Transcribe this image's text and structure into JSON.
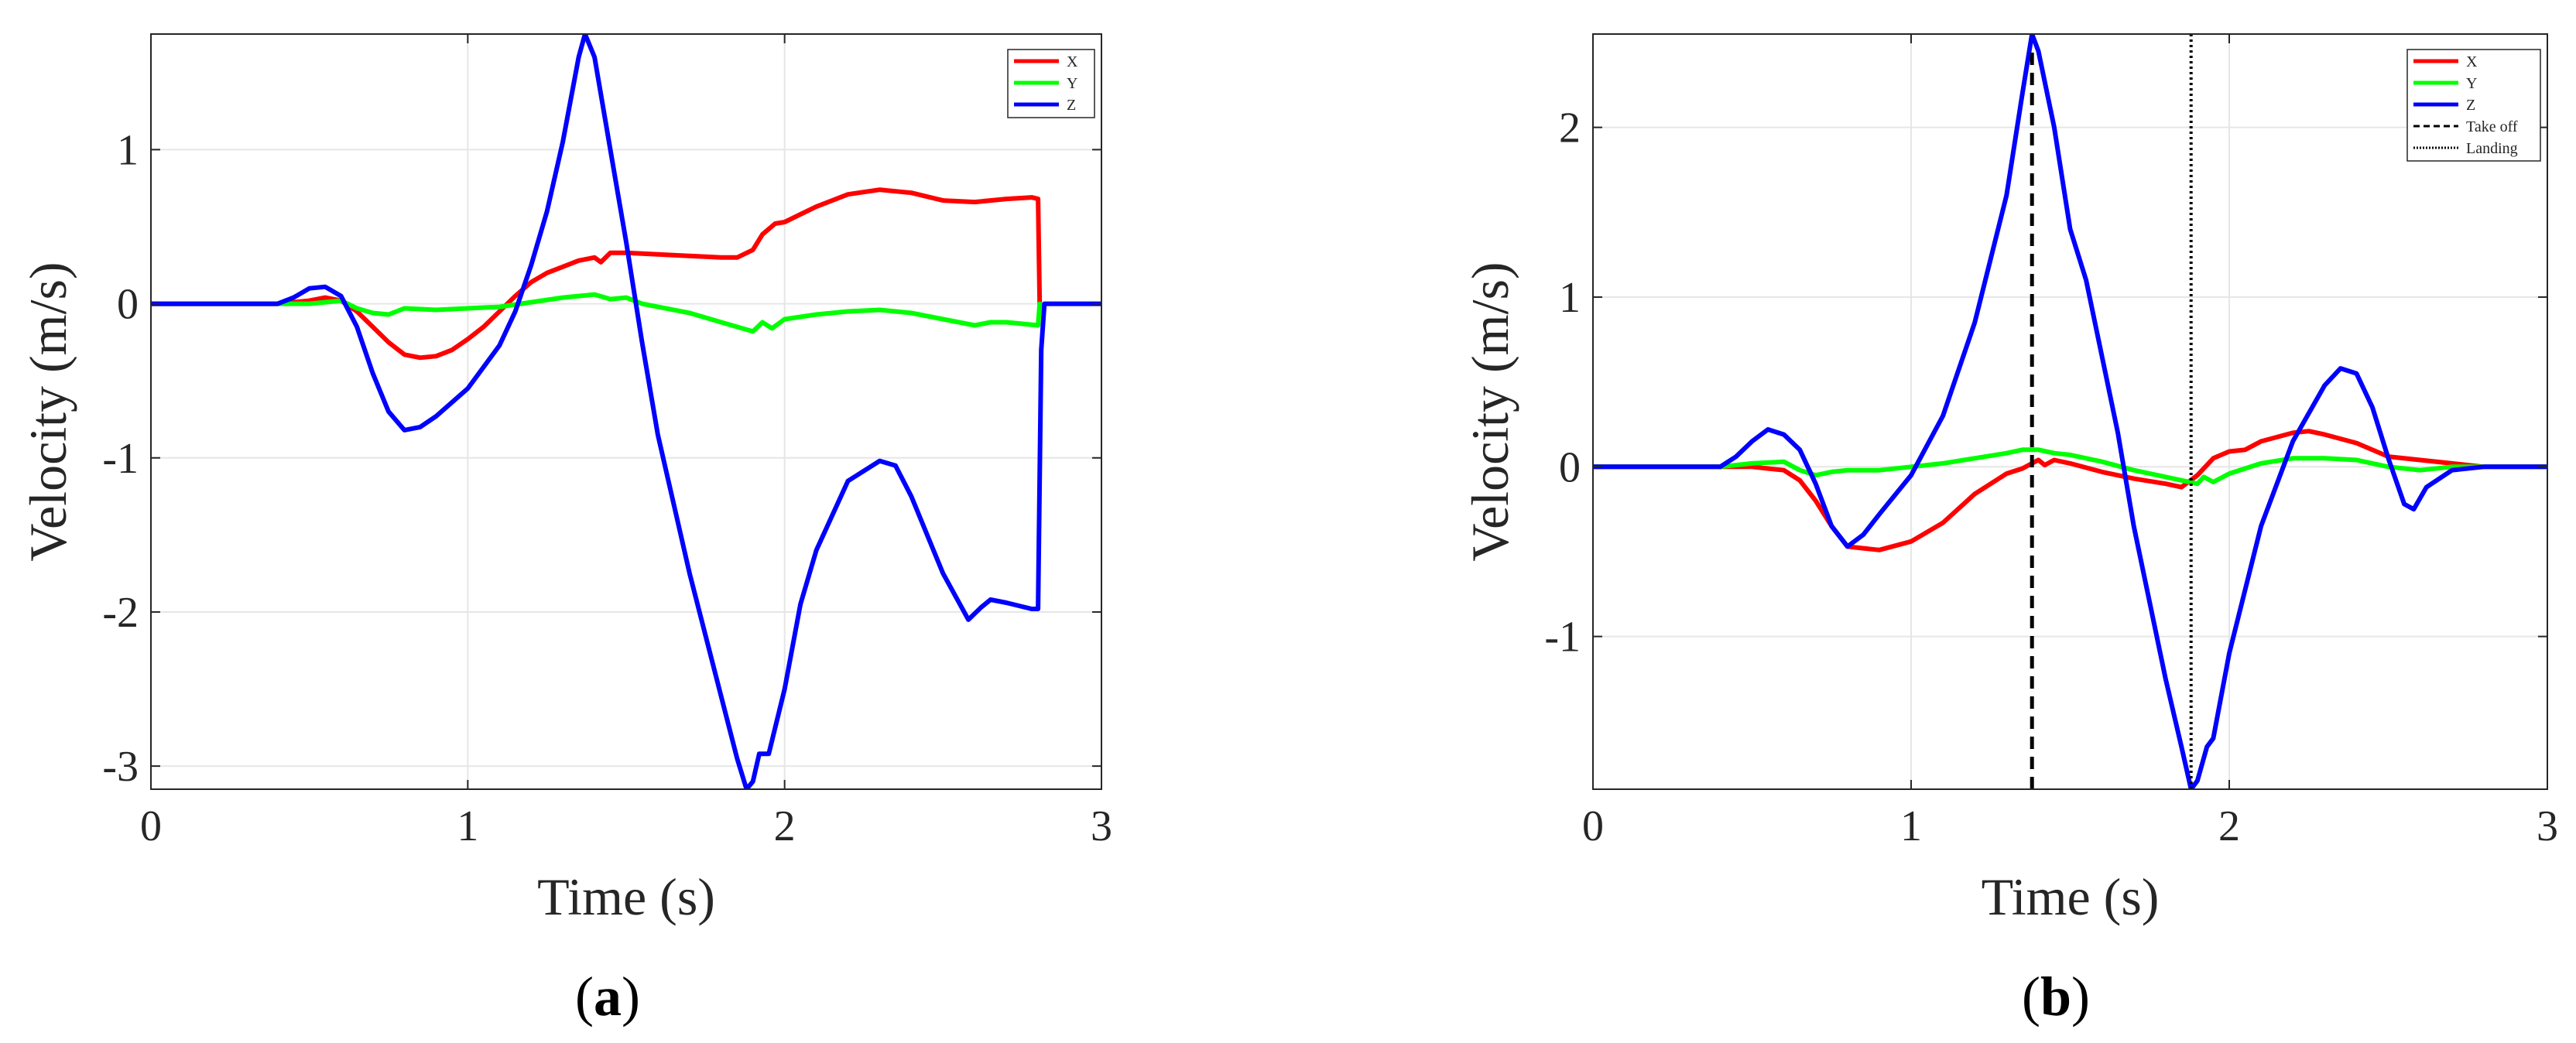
{
  "figure_labels": {
    "a": "a",
    "b": "b"
  },
  "chart_data": [
    {
      "type": "line",
      "panel": "a",
      "xlabel": "Time (s)",
      "ylabel": "Velocity (m/s)",
      "xlim": [
        0,
        3
      ],
      "ylim": [
        -3.15,
        1.75
      ],
      "xticks": [
        0,
        1,
        2,
        3
      ],
      "yticks": [
        -3,
        -2,
        -1,
        0,
        1
      ],
      "grid": true,
      "legend_position": "top-right",
      "series": [
        {
          "name": "X",
          "color": "#ff0000",
          "points": [
            [
              0,
              0
            ],
            [
              0.4,
              0
            ],
            [
              0.5,
              0.02
            ],
            [
              0.55,
              0.04
            ],
            [
              0.6,
              0.02
            ],
            [
              0.65,
              -0.05
            ],
            [
              0.7,
              -0.15
            ],
            [
              0.75,
              -0.25
            ],
            [
              0.8,
              -0.33
            ],
            [
              0.85,
              -0.35
            ],
            [
              0.9,
              -0.34
            ],
            [
              0.95,
              -0.3
            ],
            [
              1.0,
              -0.23
            ],
            [
              1.05,
              -0.15
            ],
            [
              1.1,
              -0.05
            ],
            [
              1.15,
              0.05
            ],
            [
              1.2,
              0.14
            ],
            [
              1.25,
              0.2
            ],
            [
              1.3,
              0.24
            ],
            [
              1.35,
              0.28
            ],
            [
              1.4,
              0.3
            ],
            [
              1.42,
              0.27
            ],
            [
              1.45,
              0.33
            ],
            [
              1.5,
              0.33
            ],
            [
              1.6,
              0.32
            ],
            [
              1.7,
              0.31
            ],
            [
              1.8,
              0.3
            ],
            [
              1.85,
              0.3
            ],
            [
              1.9,
              0.35
            ],
            [
              1.93,
              0.45
            ],
            [
              1.97,
              0.52
            ],
            [
              2.0,
              0.53
            ],
            [
              2.05,
              0.58
            ],
            [
              2.1,
              0.63
            ],
            [
              2.2,
              0.71
            ],
            [
              2.3,
              0.74
            ],
            [
              2.4,
              0.72
            ],
            [
              2.5,
              0.67
            ],
            [
              2.6,
              0.66
            ],
            [
              2.7,
              0.68
            ],
            [
              2.78,
              0.69
            ],
            [
              2.8,
              0.68
            ],
            [
              2.805,
              0
            ]
          ]
        },
        {
          "name": "Y",
          "color": "#00ff00",
          "points": [
            [
              0,
              0
            ],
            [
              0.4,
              0
            ],
            [
              0.5,
              0
            ],
            [
              0.6,
              0.02
            ],
            [
              0.65,
              -0.03
            ],
            [
              0.7,
              -0.06
            ],
            [
              0.75,
              -0.07
            ],
            [
              0.8,
              -0.03
            ],
            [
              0.9,
              -0.04
            ],
            [
              1.0,
              -0.03
            ],
            [
              1.1,
              -0.02
            ],
            [
              1.2,
              0.01
            ],
            [
              1.3,
              0.04
            ],
            [
              1.35,
              0.05
            ],
            [
              1.4,
              0.06
            ],
            [
              1.45,
              0.03
            ],
            [
              1.5,
              0.04
            ],
            [
              1.55,
              0
            ],
            [
              1.6,
              -0.02
            ],
            [
              1.7,
              -0.06
            ],
            [
              1.8,
              -0.12
            ],
            [
              1.9,
              -0.18
            ],
            [
              1.93,
              -0.12
            ],
            [
              1.96,
              -0.16
            ],
            [
              2.0,
              -0.1
            ],
            [
              2.1,
              -0.07
            ],
            [
              2.2,
              -0.05
            ],
            [
              2.3,
              -0.04
            ],
            [
              2.4,
              -0.06
            ],
            [
              2.5,
              -0.1
            ],
            [
              2.6,
              -0.14
            ],
            [
              2.65,
              -0.12
            ],
            [
              2.7,
              -0.12
            ],
            [
              2.8,
              -0.14
            ],
            [
              2.805,
              0
            ]
          ]
        },
        {
          "name": "Z",
          "color": "#0000ff",
          "points": [
            [
              0,
              0
            ],
            [
              0.4,
              0
            ],
            [
              0.45,
              0.04
            ],
            [
              0.5,
              0.1
            ],
            [
              0.55,
              0.11
            ],
            [
              0.6,
              0.05
            ],
            [
              0.65,
              -0.15
            ],
            [
              0.7,
              -0.45
            ],
            [
              0.75,
              -0.7
            ],
            [
              0.8,
              -0.82
            ],
            [
              0.85,
              -0.8
            ],
            [
              0.9,
              -0.73
            ],
            [
              1.0,
              -0.55
            ],
            [
              1.1,
              -0.27
            ],
            [
              1.15,
              -0.05
            ],
            [
              1.2,
              0.25
            ],
            [
              1.25,
              0.6
            ],
            [
              1.3,
              1.05
            ],
            [
              1.35,
              1.6
            ],
            [
              1.37,
              1.75
            ],
            [
              1.4,
              1.6
            ],
            [
              1.45,
              1.0
            ],
            [
              1.5,
              0.4
            ],
            [
              1.55,
              -0.25
            ],
            [
              1.6,
              -0.85
            ],
            [
              1.7,
              -1.75
            ],
            [
              1.8,
              -2.55
            ],
            [
              1.85,
              -2.95
            ],
            [
              1.88,
              -3.15
            ],
            [
              1.9,
              -3.1
            ],
            [
              1.92,
              -2.92
            ],
            [
              1.95,
              -2.92
            ],
            [
              2.0,
              -2.5
            ],
            [
              2.05,
              -1.95
            ],
            [
              2.1,
              -1.6
            ],
            [
              2.2,
              -1.15
            ],
            [
              2.3,
              -1.02
            ],
            [
              2.35,
              -1.05
            ],
            [
              2.4,
              -1.25
            ],
            [
              2.5,
              -1.75
            ],
            [
              2.58,
              -2.05
            ],
            [
              2.62,
              -1.97
            ],
            [
              2.65,
              -1.92
            ],
            [
              2.7,
              -1.94
            ],
            [
              2.78,
              -1.98
            ],
            [
              2.8,
              -1.98
            ],
            [
              2.81,
              -0.3
            ],
            [
              2.82,
              0
            ],
            [
              3.0,
              0
            ]
          ]
        }
      ]
    },
    {
      "type": "line",
      "panel": "b",
      "xlabel": "Time (s)",
      "ylabel": "Velocity (m/s)",
      "xlim": [
        0,
        3
      ],
      "ylim": [
        -1.9,
        2.55
      ],
      "xticks": [
        0,
        1,
        2,
        3
      ],
      "yticks": [
        -1,
        0,
        1,
        2
      ],
      "grid": true,
      "legend_position": "top-right",
      "series": [
        {
          "name": "X",
          "color": "#ff0000",
          "points": [
            [
              0,
              0
            ],
            [
              0.4,
              0
            ],
            [
              0.5,
              0
            ],
            [
              0.6,
              -0.02
            ],
            [
              0.65,
              -0.08
            ],
            [
              0.7,
              -0.2
            ],
            [
              0.75,
              -0.35
            ],
            [
              0.8,
              -0.47
            ],
            [
              0.85,
              -0.48
            ],
            [
              0.9,
              -0.49
            ],
            [
              1.0,
              -0.44
            ],
            [
              1.1,
              -0.33
            ],
            [
              1.2,
              -0.16
            ],
            [
              1.3,
              -0.04
            ],
            [
              1.35,
              -0.01
            ],
            [
              1.38,
              0.02
            ],
            [
              1.4,
              0.04
            ],
            [
              1.42,
              0.01
            ],
            [
              1.45,
              0.04
            ],
            [
              1.5,
              0.02
            ],
            [
              1.6,
              -0.03
            ],
            [
              1.7,
              -0.07
            ],
            [
              1.8,
              -0.1
            ],
            [
              1.85,
              -0.12
            ],
            [
              1.9,
              -0.05
            ],
            [
              1.95,
              0.05
            ],
            [
              2.0,
              0.09
            ],
            [
              2.05,
              0.1
            ],
            [
              2.1,
              0.15
            ],
            [
              2.2,
              0.2
            ],
            [
              2.25,
              0.21
            ],
            [
              2.3,
              0.19
            ],
            [
              2.4,
              0.14
            ],
            [
              2.5,
              0.06
            ],
            [
              2.6,
              0.04
            ],
            [
              2.7,
              0.02
            ],
            [
              2.8,
              0
            ],
            [
              3.0,
              0
            ]
          ]
        },
        {
          "name": "Y",
          "color": "#00ff00",
          "points": [
            [
              0,
              0
            ],
            [
              0.4,
              0
            ],
            [
              0.5,
              0.02
            ],
            [
              0.6,
              0.03
            ],
            [
              0.65,
              -0.02
            ],
            [
              0.7,
              -0.05
            ],
            [
              0.75,
              -0.03
            ],
            [
              0.8,
              -0.02
            ],
            [
              0.9,
              -0.02
            ],
            [
              1.0,
              0
            ],
            [
              1.1,
              0.02
            ],
            [
              1.2,
              0.05
            ],
            [
              1.3,
              0.08
            ],
            [
              1.35,
              0.1
            ],
            [
              1.4,
              0.1
            ],
            [
              1.45,
              0.08
            ],
            [
              1.5,
              0.07
            ],
            [
              1.55,
              0.05
            ],
            [
              1.6,
              0.03
            ],
            [
              1.7,
              -0.02
            ],
            [
              1.8,
              -0.06
            ],
            [
              1.9,
              -0.1
            ],
            [
              1.92,
              -0.06
            ],
            [
              1.95,
              -0.09
            ],
            [
              2.0,
              -0.04
            ],
            [
              2.1,
              0.02
            ],
            [
              2.2,
              0.05
            ],
            [
              2.3,
              0.05
            ],
            [
              2.4,
              0.04
            ],
            [
              2.5,
              0
            ],
            [
              2.6,
              -0.02
            ],
            [
              2.7,
              0
            ],
            [
              2.8,
              0
            ],
            [
              3.0,
              0
            ]
          ]
        },
        {
          "name": "Z",
          "color": "#0000ff",
          "points": [
            [
              0,
              0
            ],
            [
              0.4,
              0
            ],
            [
              0.45,
              0.06
            ],
            [
              0.5,
              0.15
            ],
            [
              0.55,
              0.22
            ],
            [
              0.6,
              0.19
            ],
            [
              0.65,
              0.1
            ],
            [
              0.7,
              -0.1
            ],
            [
              0.75,
              -0.35
            ],
            [
              0.8,
              -0.47
            ],
            [
              0.85,
              -0.4
            ],
            [
              0.9,
              -0.28
            ],
            [
              1.0,
              -0.05
            ],
            [
              1.1,
              0.3
            ],
            [
              1.2,
              0.85
            ],
            [
              1.3,
              1.6
            ],
            [
              1.35,
              2.2
            ],
            [
              1.38,
              2.55
            ],
            [
              1.4,
              2.45
            ],
            [
              1.45,
              2.0
            ],
            [
              1.5,
              1.4
            ],
            [
              1.55,
              1.1
            ],
            [
              1.6,
              0.65
            ],
            [
              1.65,
              0.2
            ],
            [
              1.7,
              -0.35
            ],
            [
              1.8,
              -1.25
            ],
            [
              1.85,
              -1.65
            ],
            [
              1.88,
              -1.9
            ],
            [
              1.9,
              -1.85
            ],
            [
              1.93,
              -1.65
            ],
            [
              1.95,
              -1.6
            ],
            [
              2.0,
              -1.1
            ],
            [
              2.1,
              -0.35
            ],
            [
              2.2,
              0.15
            ],
            [
              2.3,
              0.48
            ],
            [
              2.35,
              0.58
            ],
            [
              2.4,
              0.55
            ],
            [
              2.45,
              0.35
            ],
            [
              2.5,
              0.05
            ],
            [
              2.55,
              -0.22
            ],
            [
              2.58,
              -0.25
            ],
            [
              2.62,
              -0.12
            ],
            [
              2.7,
              -0.02
            ],
            [
              2.8,
              0
            ],
            [
              3.0,
              0
            ]
          ]
        },
        {
          "name": "Take off",
          "color": "#000000",
          "dash": "dashed",
          "points": [
            [
              1.38,
              -1.9
            ],
            [
              1.38,
              2.45
            ]
          ]
        },
        {
          "name": "Landing",
          "color": "#000000",
          "dash": "dotted",
          "points": [
            [
              1.88,
              -1.9
            ],
            [
              1.88,
              2.55
            ]
          ]
        }
      ]
    }
  ]
}
